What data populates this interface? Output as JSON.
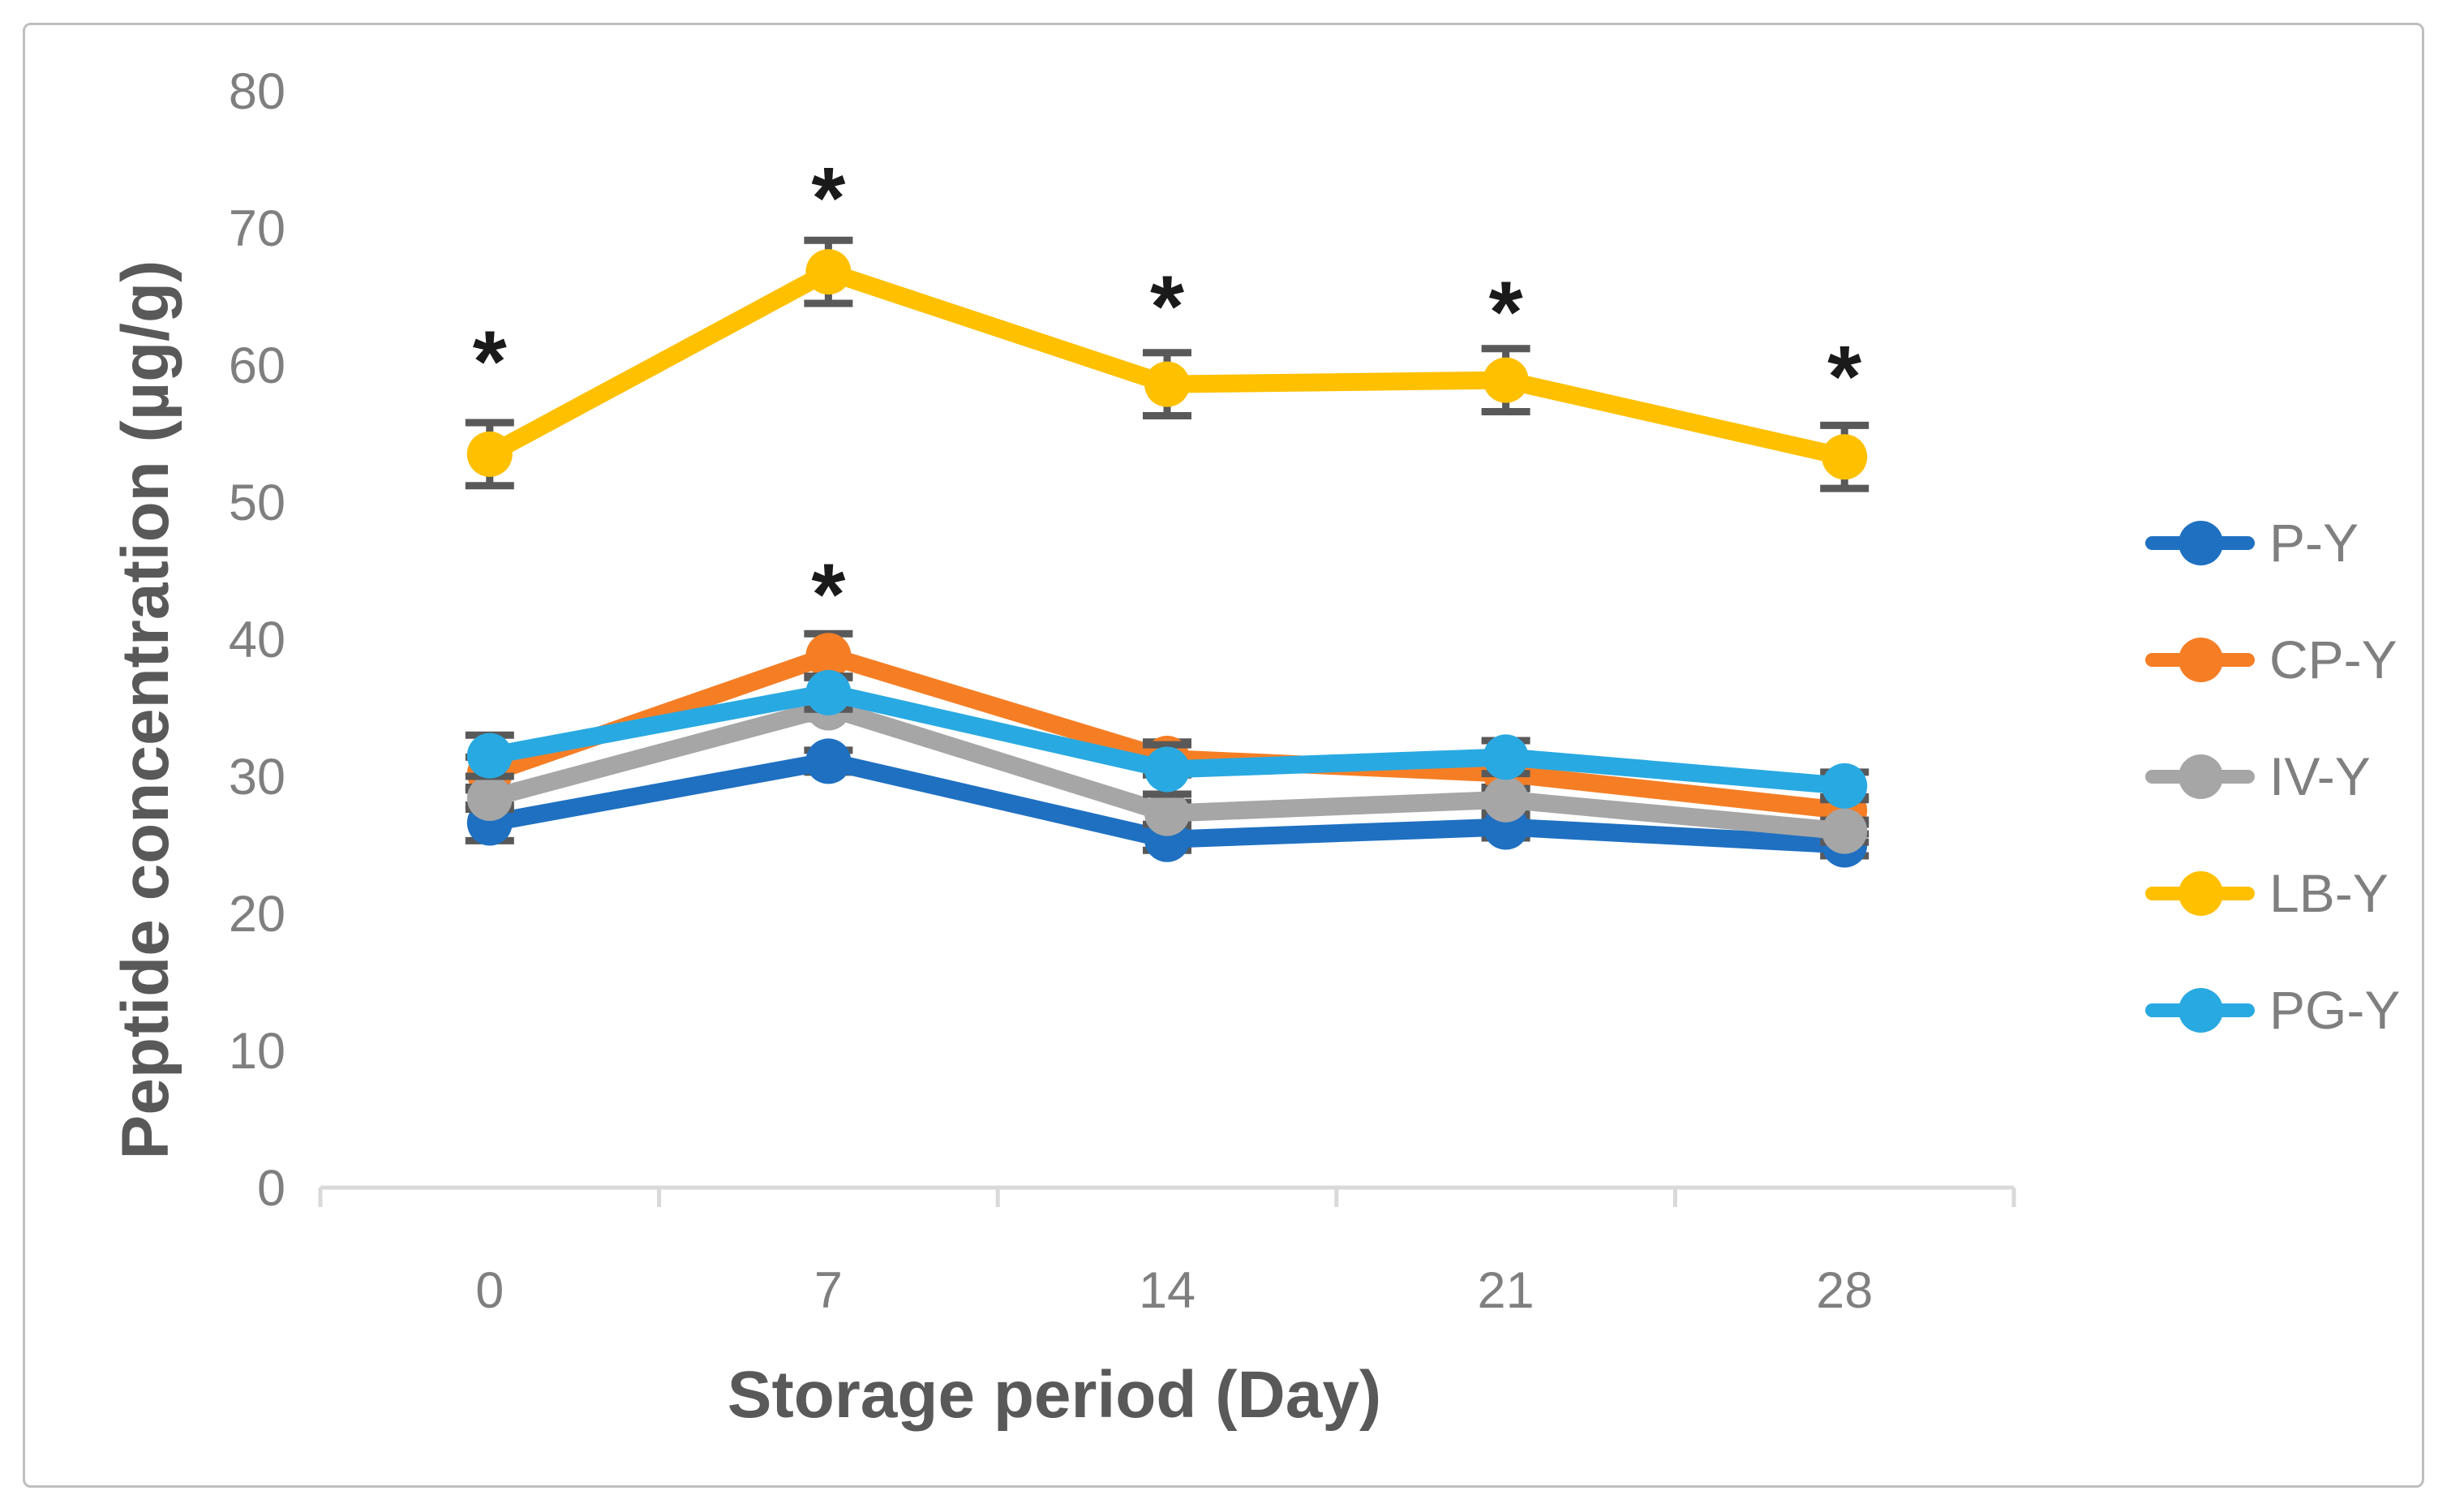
{
  "figure": {
    "background": "#FFFFFF",
    "border_color": "#BFBFBF"
  },
  "chart_data": {
    "type": "line",
    "title": "",
    "xlabel": "Storage period (Day)",
    "ylabel": "Peptide concentration (µg/g)",
    "x": [
      0,
      7,
      14,
      21,
      28
    ],
    "xtick_labels": [
      "0",
      "7",
      "14",
      "21",
      "28"
    ],
    "yticks": [
      0,
      10,
      20,
      30,
      40,
      50,
      60,
      70,
      80
    ],
    "ylim": [
      0,
      80
    ],
    "grid": false,
    "legend_position": "right",
    "series": [
      {
        "name": "P-Y",
        "color": "#1F70C1",
        "values": [
          26.6,
          31.1,
          25.4,
          26.3,
          25.0
        ],
        "errors": [
          1.3,
          0.8,
          0.8,
          0.8,
          0.8
        ]
      },
      {
        "name": "CP-Y",
        "color": "#F57E25",
        "values": [
          30.2,
          38.8,
          31.3,
          30.2,
          27.5
        ],
        "errors": [
          1.2,
          1.6,
          1.2,
          1.0,
          1.0
        ]
      },
      {
        "name": "IV-Y",
        "color": "#A6A6A6",
        "values": [
          28.4,
          35.0,
          27.3,
          28.3,
          26.0
        ],
        "errors": [
          0.8,
          0.8,
          0.8,
          0.8,
          0.8
        ]
      },
      {
        "name": "LB-Y",
        "color": "#FFC000",
        "values": [
          53.5,
          66.8,
          58.6,
          58.9,
          53.3
        ],
        "errors": [
          2.3,
          2.3,
          2.3,
          2.3,
          2.3
        ]
      },
      {
        "name": "PG-Y",
        "color": "#29A9E1",
        "values": [
          31.5,
          36.1,
          30.5,
          31.4,
          29.3
        ],
        "errors": [
          1.5,
          1.2,
          1.8,
          1.2,
          1.0
        ]
      }
    ],
    "annotations": [
      {
        "symbol": "*",
        "x": 0,
        "y": 60.2
      },
      {
        "symbol": "*",
        "x": 7,
        "y": 72.1
      },
      {
        "symbol": "*",
        "x": 14,
        "y": 64.2
      },
      {
        "symbol": "*",
        "x": 21,
        "y": 63.8
      },
      {
        "symbol": "*",
        "x": 28,
        "y": 59.1
      },
      {
        "symbol": "*",
        "x": 7,
        "y": 43.2
      }
    ],
    "colors": {
      "axis_line": "#D9D9D9",
      "tick_label": "#7F7F7F",
      "axis_title": "#595959",
      "error_bar": "#595959",
      "annotation": "#1A1A1A"
    }
  }
}
